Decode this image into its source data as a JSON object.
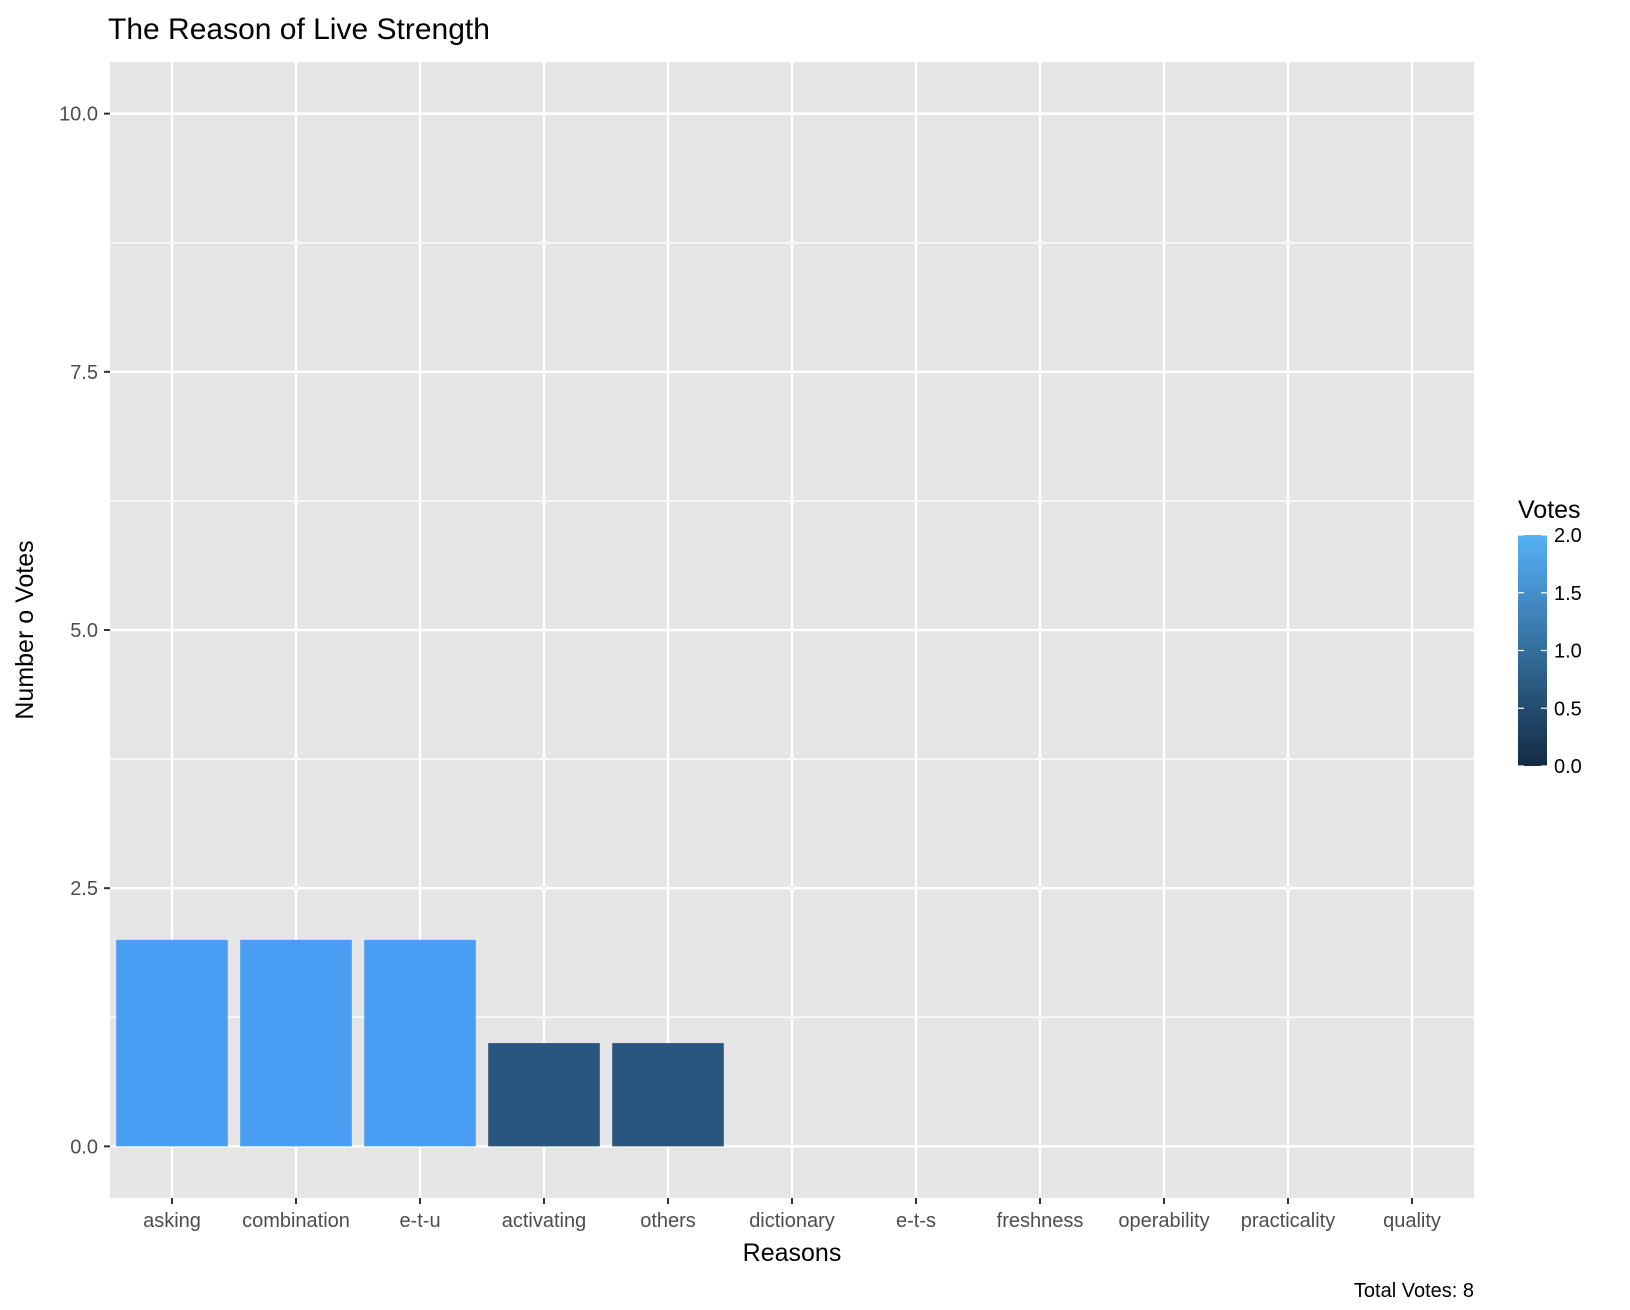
{
  "chart_data": {
    "type": "bar",
    "title": "The Reason of Live Strength",
    "xlabel": "Reasons",
    "ylabel": "Number o Votes",
    "categories": [
      "asking",
      "combination",
      "e-t-u",
      "activating",
      "others",
      "dictionary",
      "e-t-s",
      "freshness",
      "operability",
      "practicality",
      "quality"
    ],
    "values": [
      2,
      2,
      2,
      1,
      1,
      0,
      0,
      0,
      0,
      0,
      0
    ],
    "ylim": [
      -0.5,
      10.5
    ],
    "yticks": [
      0.0,
      2.5,
      5.0,
      7.5,
      10.0
    ],
    "ytick_labels": [
      "0.0",
      "2.5",
      "5.0",
      "7.5",
      "10.0"
    ],
    "grid": true,
    "legend": {
      "title": "Votes",
      "placement": "right",
      "type": "colorbar",
      "range": [
        0,
        2
      ],
      "ticks": [
        0.0,
        0.5,
        1.0,
        1.5,
        2.0
      ],
      "tick_labels": [
        "0.0",
        "0.5",
        "1.0",
        "1.5",
        "2.0"
      ],
      "color_low": "#132B43",
      "color_high": "#56B1F7"
    },
    "caption": "Total Votes: 8"
  },
  "colors": {
    "panel_background": "#e5e5e5",
    "grid_line": "#ffffff",
    "bar_high": "#4a9ff5",
    "bar_mid": "#29567f"
  }
}
